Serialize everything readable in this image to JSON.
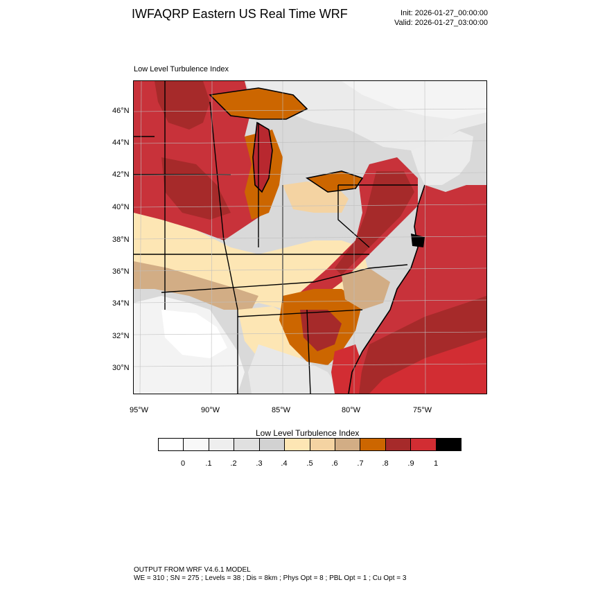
{
  "header": {
    "title": "IWFAQRP Eastern US Real Time WRF",
    "init": "Init: 2026-01-27_00:00:00",
    "valid": "Valid: 2026-01-27_03:00:00"
  },
  "map": {
    "field_label": "Low Level Turbulence Index",
    "lat_ticks": [
      "46°N",
      "44°N",
      "42°N",
      "40°N",
      "38°N",
      "36°N",
      "34°N",
      "32°N",
      "30°N"
    ],
    "lon_ticks": [
      "95°W",
      "90°W",
      "85°W",
      "80°W",
      "75°W"
    ],
    "ocean_color": "#c8323a",
    "land_base_color": "#d9d9d9"
  },
  "colorbar": {
    "title": "Low Level Turbulence Index",
    "labels": [
      "0",
      ".1",
      ".2",
      ".3",
      ".4",
      ".5",
      ".6",
      ".7",
      ".8",
      ".9",
      "1"
    ],
    "colors": [
      "#ffffff",
      "#f8f8f8",
      "#eeeeee",
      "#e0e0e0",
      "#d2d2d2",
      "#fde6b4",
      "#f4d3a2",
      "#d2ad85",
      "#cc6600",
      "#a62a2a",
      "#d22d33",
      "#000000"
    ]
  },
  "footer": {
    "line1": "OUTPUT FROM WRF V4.6.1 MODEL",
    "line2": "WE = 310 ; SN = 275 ; Levels = 38 ; Dis = 8km ; Phys Opt = 8 ; PBL Opt = 1 ; Cu Opt = 3"
  }
}
